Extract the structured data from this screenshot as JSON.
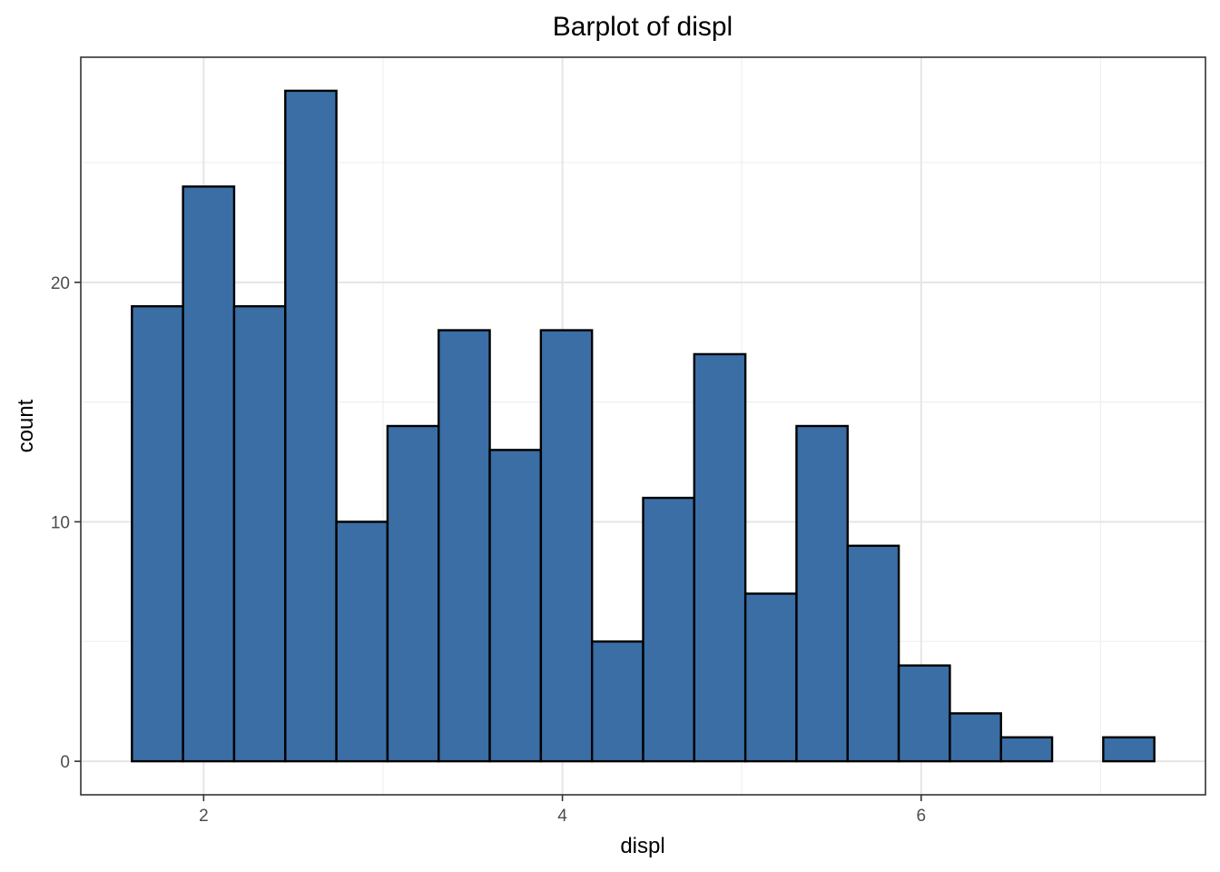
{
  "chart_data": {
    "type": "bar",
    "title": "Barplot of displ",
    "xlabel": "displ",
    "ylabel": "count",
    "bin_width": 0.285,
    "bins": [
      {
        "x_start": 1.6,
        "x_end": 1.885,
        "count": 19
      },
      {
        "x_start": 1.885,
        "x_end": 2.17,
        "count": 24
      },
      {
        "x_start": 2.17,
        "x_end": 2.455,
        "count": 19
      },
      {
        "x_start": 2.455,
        "x_end": 2.74,
        "count": 28
      },
      {
        "x_start": 2.74,
        "x_end": 3.025,
        "count": 10
      },
      {
        "x_start": 3.025,
        "x_end": 3.31,
        "count": 14
      },
      {
        "x_start": 3.31,
        "x_end": 3.595,
        "count": 18
      },
      {
        "x_start": 3.595,
        "x_end": 3.88,
        "count": 13
      },
      {
        "x_start": 3.88,
        "x_end": 4.165,
        "count": 18
      },
      {
        "x_start": 4.165,
        "x_end": 4.45,
        "count": 5
      },
      {
        "x_start": 4.45,
        "x_end": 4.735,
        "count": 11
      },
      {
        "x_start": 4.735,
        "x_end": 5.02,
        "count": 17
      },
      {
        "x_start": 5.02,
        "x_end": 5.305,
        "count": 7
      },
      {
        "x_start": 5.305,
        "x_end": 5.59,
        "count": 14
      },
      {
        "x_start": 5.59,
        "x_end": 5.875,
        "count": 9
      },
      {
        "x_start": 5.875,
        "x_end": 6.16,
        "count": 4
      },
      {
        "x_start": 6.16,
        "x_end": 6.445,
        "count": 2
      },
      {
        "x_start": 6.445,
        "x_end": 6.73,
        "count": 1
      },
      {
        "x_start": 6.73,
        "x_end": 7.015,
        "count": 0
      },
      {
        "x_start": 7.015,
        "x_end": 7.3,
        "count": 1
      }
    ],
    "xlim": [
      1.315,
      7.585
    ],
    "ylim": [
      -1.4,
      29.4
    ],
    "x_ticks": [
      2,
      4,
      6
    ],
    "x_tick_labels": [
      "2",
      "4",
      "6"
    ],
    "y_ticks": [
      0,
      10,
      20
    ],
    "y_tick_labels": [
      "0",
      "10",
      "20"
    ],
    "grid": true,
    "colors": {
      "bar_fill": "#3a6ea5",
      "bar_outline": "#000000"
    }
  }
}
